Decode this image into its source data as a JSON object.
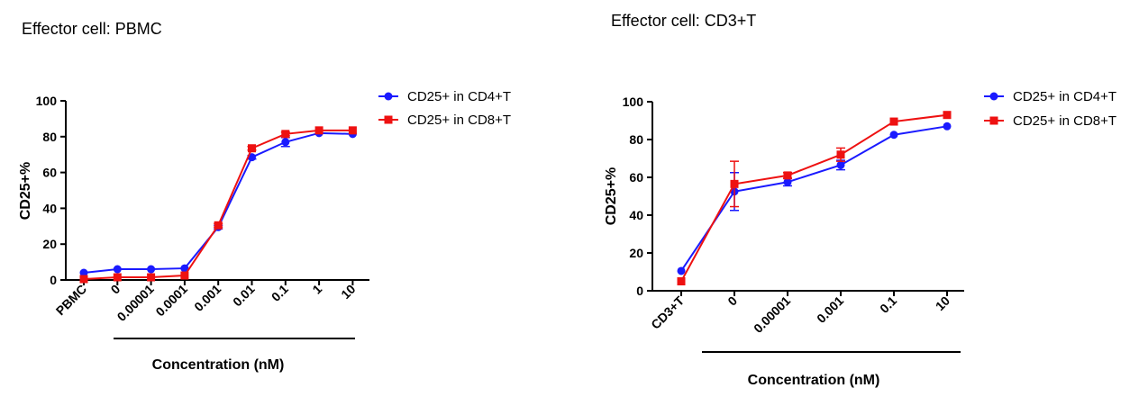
{
  "chart_data": [
    {
      "type": "line",
      "title": "Effector cell: PBMC",
      "xlabel": "Concentration (nM)",
      "ylabel": "CD25+%",
      "categories": [
        "PBMC",
        "0",
        "0.00001",
        "0.0001",
        "0.001",
        "0.01",
        "0.1",
        "1",
        "10"
      ],
      "ylim": [
        0,
        100
      ],
      "yticks": [
        "0",
        "20",
        "40",
        "60",
        "80",
        "100"
      ],
      "legend_position": "top-right",
      "series": [
        {
          "name": "CD25+ in CD4+T",
          "color": "#1a1aff",
          "marker": "circle",
          "values": [
            4,
            6,
            6,
            6.5,
            29.5,
            68.5,
            77,
            82,
            81.5
          ],
          "errors": [
            0.5,
            0.5,
            0.5,
            0.5,
            1,
            1,
            2.5,
            0.5,
            0.5
          ]
        },
        {
          "name": "CD25+ in CD8+T",
          "color": "#ee1111",
          "marker": "square",
          "values": [
            0.5,
            1.5,
            1.5,
            2.5,
            30.5,
            73.5,
            81.5,
            83.5,
            83.5
          ],
          "errors": [
            0.5,
            0.5,
            0.5,
            0.5,
            1,
            1,
            1,
            0.5,
            0.5
          ]
        }
      ]
    },
    {
      "type": "line",
      "title": "Effector cell: CD3+T",
      "xlabel": "Concentration (nM)",
      "ylabel": "CD25+%",
      "categories": [
        "CD3+T",
        "0",
        "0.00001",
        "0.001",
        "0.1",
        "10"
      ],
      "ylim": [
        0,
        100
      ],
      "yticks": [
        "0",
        "20",
        "40",
        "60",
        "80",
        "100"
      ],
      "legend_position": "top-right",
      "series": [
        {
          "name": "CD25+ in CD4+T",
          "color": "#1a1aff",
          "marker": "circle",
          "values": [
            10.5,
            52.5,
            57.5,
            66.5,
            82.5,
            87
          ],
          "errors": [
            0.5,
            10,
            2,
            2.5,
            0.5,
            0.5
          ]
        },
        {
          "name": "CD25+ in CD8+T",
          "color": "#ee1111",
          "marker": "square",
          "values": [
            5,
            56.5,
            61,
            72,
            89.5,
            93
          ],
          "errors": [
            0.5,
            12,
            1.5,
            3.5,
            0.5,
            0.5
          ]
        }
      ]
    }
  ]
}
